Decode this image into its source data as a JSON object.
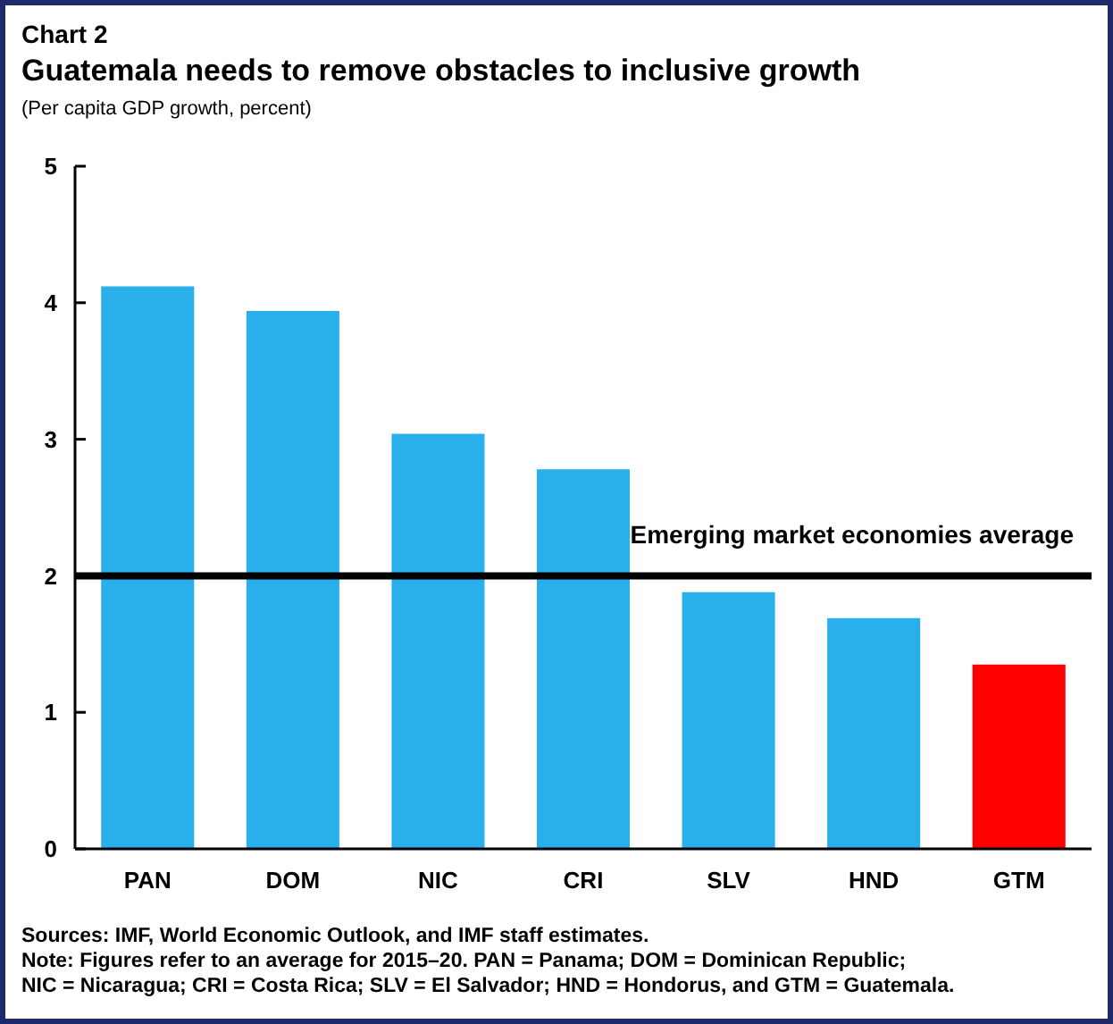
{
  "chart_data": {
    "type": "bar",
    "title": "Chart 2",
    "subtitle": "Guatemala needs to remove obstacles to inclusive growth",
    "ylabel": "(Per capita GDP growth, percent)",
    "categories": [
      "PAN",
      "DOM",
      "NIC",
      "CRI",
      "SLV",
      "HND",
      "GTM"
    ],
    "values": [
      4.12,
      3.94,
      3.04,
      2.78,
      1.88,
      1.69,
      1.35
    ],
    "colors": [
      "#29b0ea",
      "#29b0ea",
      "#29b0ea",
      "#29b0ea",
      "#29b0ea",
      "#29b0ea",
      "#ff0000"
    ],
    "ylim": [
      0,
      5
    ],
    "yticks": [
      0,
      1,
      2,
      3,
      4,
      5
    ],
    "grid": false,
    "ref_lines": [
      {
        "axis": "y",
        "value": 2,
        "label": "Emerging market economies average",
        "color": "#000000"
      }
    ],
    "annotations": [
      "Sources: IMF, World Economic Outlook, and IMF staff estimates.",
      "Note: Figures refer to an average for 2015–20. PAN = Panama; DOM = Dominican Republic;",
      "NIC = Nicaragua; CRI = Costa Rica; SLV = El Salvador; HND = Hondorus, and GTM = Guatemala."
    ]
  }
}
